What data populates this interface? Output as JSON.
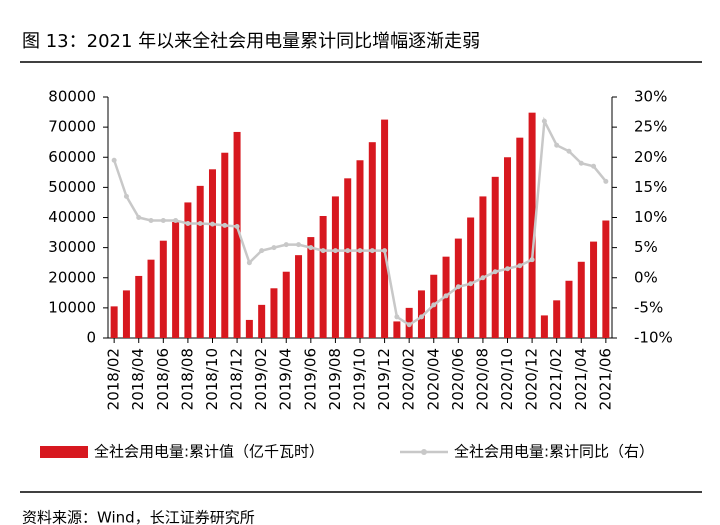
{
  "chart_data": {
    "type": "bar-line",
    "title": "图 13：2021 年以来全社会用电量累计同比增幅逐渐走弱",
    "source": "资料来源：Wind，长江证券研究所",
    "categories": [
      "2018/02",
      null,
      "2018/04",
      null,
      "2018/06",
      null,
      "2018/08",
      null,
      "2018/10",
      null,
      "2018/12",
      null,
      "2019/02",
      null,
      "2019/04",
      null,
      "2019/06",
      null,
      "2019/08",
      null,
      "2019/10",
      null,
      "2019/12",
      null,
      "2020/02",
      null,
      "2020/04",
      null,
      "2020/06",
      null,
      "2020/08",
      null,
      "2020/10",
      null,
      "2020/12",
      null,
      "2021/02",
      null,
      "2021/04",
      null,
      "2021/06"
    ],
    "series": [
      {
        "name": "全社会用电量:累计值（亿千瓦时）",
        "color": "#d7181f",
        "type": "bar",
        "values": [
          10500,
          15800,
          20600,
          26000,
          32300,
          38500,
          45000,
          50500,
          56000,
          61500,
          68400,
          6000,
          11000,
          16500,
          22000,
          27500,
          33500,
          40500,
          47000,
          53000,
          59000,
          65000,
          72500,
          5500,
          10000,
          15800,
          21000,
          27000,
          33000,
          40000,
          47000,
          53500,
          60000,
          66500,
          74800,
          7500,
          12500,
          19000,
          25300,
          32000,
          39000
        ]
      },
      {
        "name": "全社会用电量:累计同比（右）",
        "color": "#c8c8c8",
        "type": "line",
        "axis": "y2",
        "values": [
          19.5,
          13.5,
          10,
          9.5,
          9.5,
          9.5,
          9,
          9,
          8.9,
          8.7,
          8.5,
          2.5,
          4.5,
          5,
          5.5,
          5.5,
          5,
          4.5,
          4.5,
          4.5,
          4.5,
          4.5,
          4.5,
          -6.5,
          -7.8,
          -6.5,
          -4.5,
          -3,
          -1.5,
          -1,
          0,
          1,
          1.5,
          2,
          3,
          26,
          22,
          21,
          19,
          18.5,
          16
        ]
      }
    ],
    "ylim": [
      0,
      80000
    ],
    "yticks": [
      0,
      10000,
      20000,
      30000,
      40000,
      50000,
      60000,
      70000,
      80000
    ],
    "y2lim": [
      -10,
      30
    ],
    "y2ticks": [
      {
        "value": -10,
        "label": "-10%"
      },
      {
        "value": -5,
        "label": "-5%"
      },
      {
        "value": 0,
        "label": "0%"
      },
      {
        "value": 5,
        "label": "5%"
      },
      {
        "value": 10,
        "label": "10%"
      },
      {
        "value": 15,
        "label": "15%"
      },
      {
        "value": 20,
        "label": "20%"
      },
      {
        "value": 25,
        "label": "25%"
      },
      {
        "value": 30,
        "label": "30%"
      }
    ]
  }
}
